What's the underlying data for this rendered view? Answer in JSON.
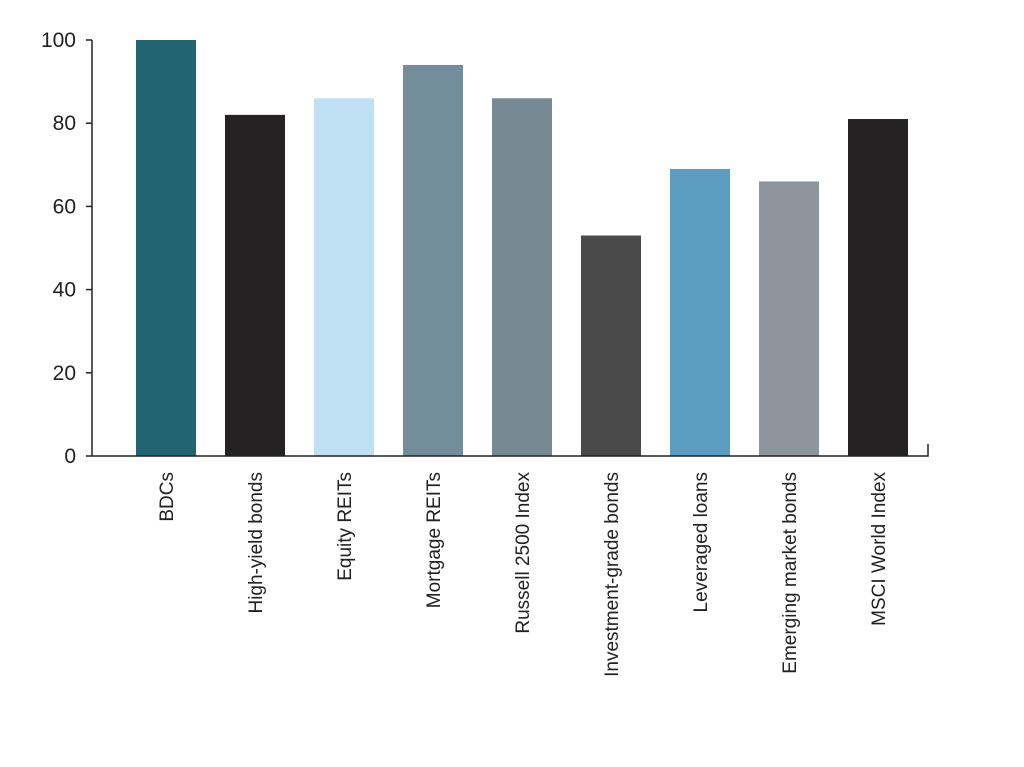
{
  "chart_data": {
    "type": "bar",
    "categories": [
      "BDCs",
      "High-yield bonds",
      "Equity REITs",
      "Mortgage REITs",
      "Russell 2500 Index",
      "Investment-grade bonds",
      "Leveraged loans",
      "Emerging market bonds",
      "MSCI World Index"
    ],
    "values": [
      100,
      82,
      86,
      94,
      86,
      53,
      69,
      66,
      81
    ],
    "bar_colors": [
      "#236473",
      "#252223",
      "#bfe0f2",
      "#748d9b",
      "#778a94",
      "#4a4a4a",
      "#5b9cc0",
      "#8e959c",
      "#252223"
    ],
    "ylim": [
      0,
      100
    ],
    "yticks": [
      0,
      20,
      40,
      60,
      80,
      100
    ],
    "title": "",
    "xlabel": "",
    "ylabel": "",
    "grid": false,
    "legend": "none"
  }
}
